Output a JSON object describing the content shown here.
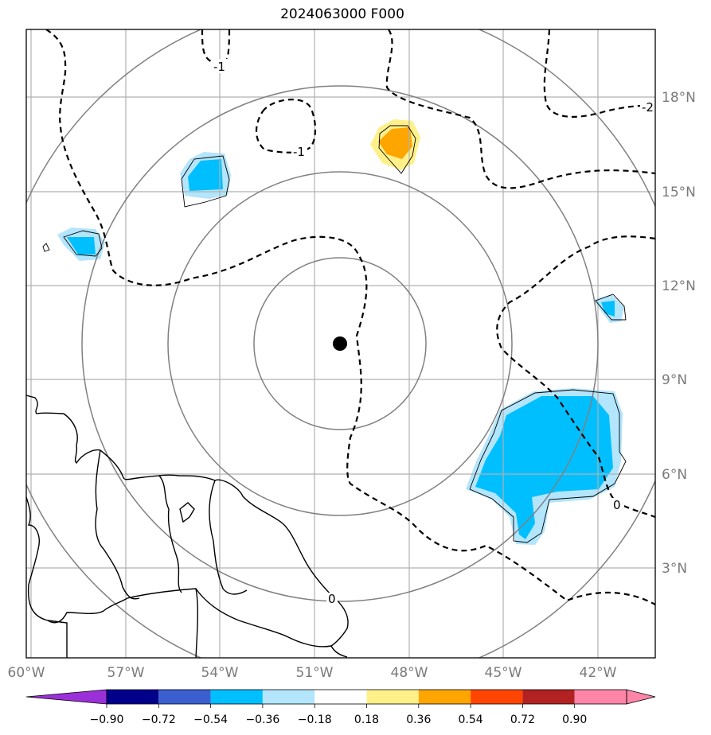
{
  "title": "2024063000 F000",
  "map": {
    "lon_labels": [
      "60°W",
      "57°W",
      "54°W",
      "51°W",
      "48°W",
      "45°W",
      "42°W"
    ],
    "lat_labels": [
      "3°N",
      "6°N",
      "9°N",
      "12°N",
      "15°N",
      "18°N"
    ],
    "contour_labels": [
      "-1",
      "-1",
      "-2",
      "0",
      "0"
    ],
    "center_marker": "storm-center",
    "colors": {
      "frame": "#000000",
      "grid": "#b0b0b0",
      "rings": "#808080",
      "coast": "#000000",
      "blue_main": "#00bfff",
      "blue_light": "#b3e5fc",
      "orange": "#ffa500",
      "yellow": "#fff08a"
    }
  },
  "colorbar": {
    "ticks": [
      "−0.90",
      "−0.72",
      "−0.54",
      "−0.36",
      "−0.18",
      "0.18",
      "0.36",
      "0.54",
      "0.72",
      "0.90"
    ],
    "colors": [
      "#9b30d9",
      "#00008b",
      "#3b5fcf",
      "#00bfff",
      "#b3e5fc",
      "#ffffff",
      "#fff08a",
      "#ffa500",
      "#ff4500",
      "#b22222",
      "#ff85a8"
    ]
  }
}
